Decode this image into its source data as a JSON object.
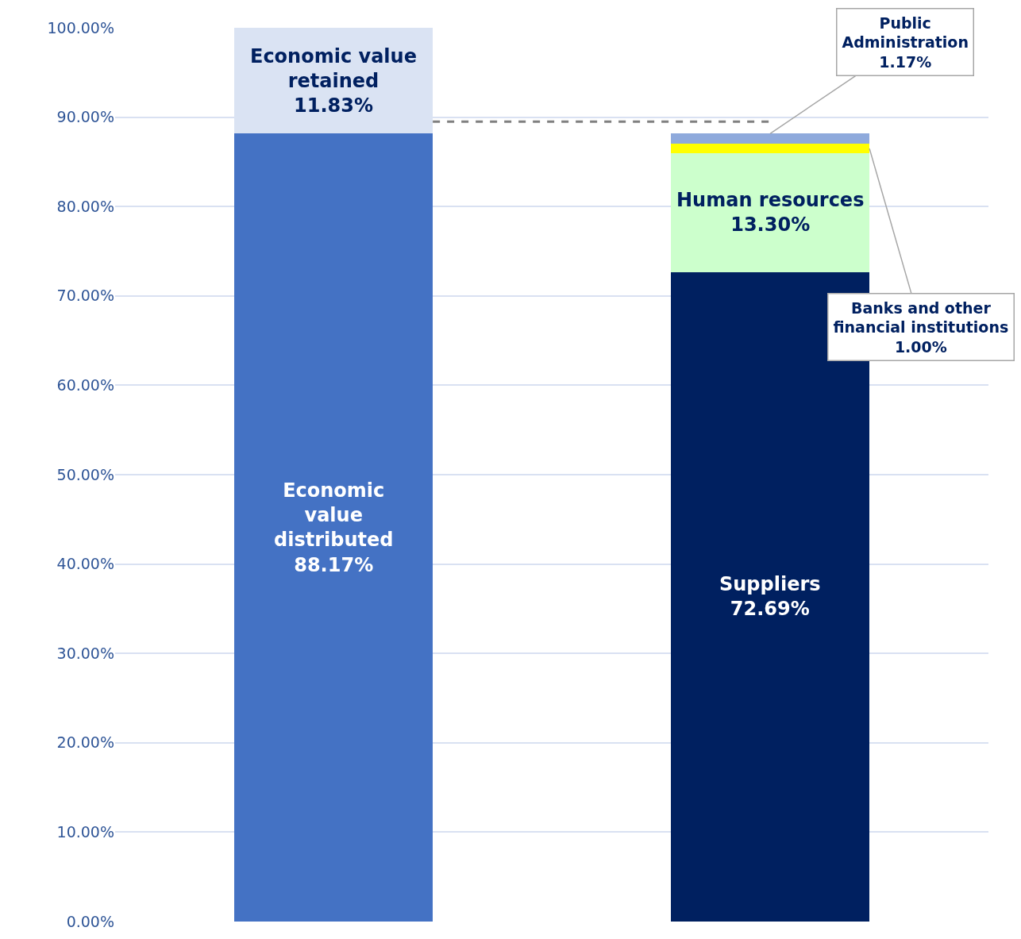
{
  "chart_data": {
    "type": "bar",
    "stacked": true,
    "categories": [
      null,
      null
    ],
    "series": [
      {
        "color": "#4472c4",
        "values": [
          88.17,
          null
        ],
        "value_labels": [
          "Economic\nvalue\ndistributed\n88.17%",
          null
        ]
      },
      {
        "color": "#dae3f3",
        "values": [
          11.83,
          null
        ],
        "value_labels": [
          "Economic value\nretained\n11.83%",
          null
        ]
      },
      {
        "color": "#002060",
        "values": [
          null,
          72.69
        ],
        "value_labels": [
          null,
          "Suppliers\n72.69%"
        ]
      },
      {
        "color": "#ccffcc",
        "values": [
          null,
          13.3
        ],
        "value_labels": [
          null,
          "Human resources\n13.30%"
        ]
      },
      {
        "color": "#ffff00",
        "values": [
          null,
          1.0
        ],
        "value_labels": [
          null,
          "Banks and other\nfinancial institutions\n1.00%"
        ]
      },
      {
        "color": "#8faadc",
        "values": [
          null,
          1.17
        ],
        "value_labels": [
          null,
          "Public\nAdministration\n1.17%"
        ]
      }
    ],
    "ylim": [
      0,
      100
    ],
    "yticks": [
      {
        "value": 0,
        "label": "0.00%"
      },
      {
        "value": 10,
        "label": "10.00%"
      },
      {
        "value": 20,
        "label": "20.00%"
      },
      {
        "value": 30,
        "label": "30.00%"
      },
      {
        "value": 40,
        "label": "40.00%"
      },
      {
        "value": 50,
        "label": "50.00%"
      },
      {
        "value": 60,
        "label": "60.00%"
      },
      {
        "value": 70,
        "label": "70.00%"
      },
      {
        "value": 80,
        "label": "80.00%"
      },
      {
        "value": 90,
        "label": "90.00%"
      },
      {
        "value": 100,
        "label": "100.00%"
      }
    ],
    "grid": "y",
    "ref_lines": [
      {
        "axis": "y",
        "value": 89.5,
        "color": "#808080",
        "line_style": "dashed"
      }
    ]
  }
}
